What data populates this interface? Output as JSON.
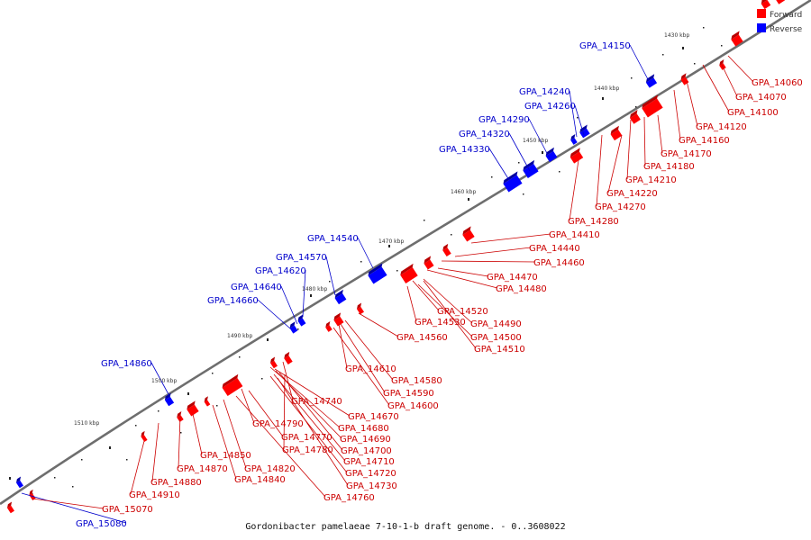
{
  "legend": {
    "forward_label": "Forward",
    "reverse_label": "Reverse",
    "forward_color": "#ff0000",
    "reverse_color": "#0000ff"
  },
  "caption": "Gordonibacter pamelaeae 7-10-1-b draft genome. - 0..3608022",
  "ticks": [
    "1430 kbp",
    "1440 kbp",
    "1450 kbp",
    "1460 kbp",
    "1470 kbp",
    "1480 kbp",
    "1490 kbp",
    "1500 kbp",
    "1510 kbp"
  ],
  "reverse_genes": [
    "GPA_14150",
    "GPA_14240",
    "GPA_14260",
    "GPA_14290",
    "GPA_14320",
    "GPA_14330",
    "GPA_14540",
    "GPA_14570",
    "GPA_14620",
    "GPA_14640",
    "GPA_14660",
    "GPA_14860",
    "GPA_15080"
  ],
  "forward_genes": [
    "GPA_14060",
    "GPA_14070",
    "GPA_14100",
    "GPA_14120",
    "GPA_14160",
    "GPA_14170",
    "GPA_14180",
    "GPA_14210",
    "GPA_14220",
    "GPA_14270",
    "GPA_14280",
    "GPA_14410",
    "GPA_14440",
    "GPA_14460",
    "GPA_14470",
    "GPA_14480",
    "GPA_14520",
    "GPA_14490",
    "GPA_14530",
    "GPA_14500",
    "GPA_14510",
    "GPA_14560",
    "GPA_14610",
    "GPA_14580",
    "GPA_14590",
    "GPA_14600",
    "GPA_14740",
    "GPA_14670",
    "GPA_14680",
    "GPA_14690",
    "GPA_14790",
    "GPA_14770",
    "GPA_14700",
    "GPA_14780",
    "GPA_14710",
    "GPA_14720",
    "GPA_14730",
    "GPA_14760",
    "GPA_14850",
    "GPA_14820",
    "GPA_14870",
    "GPA_14840",
    "GPA_14880",
    "GPA_14910",
    "GPA_15070"
  ]
}
